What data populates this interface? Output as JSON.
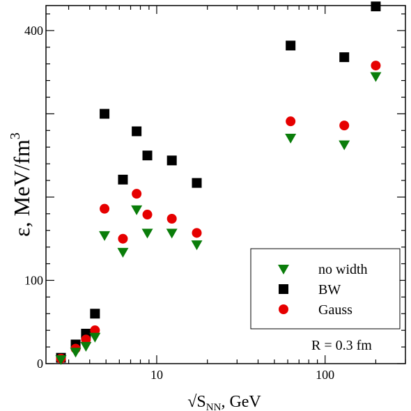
{
  "chart_data": {
    "type": "scatter",
    "title": "",
    "xlabel": {
      "prefix": "√S",
      "subscript": "NN",
      "suffix": ", GeV"
    },
    "ylabel": {
      "main": "ε, MeV/fm",
      "superscript": "3"
    },
    "x_scale": "log",
    "xlim": [
      2.2,
      300
    ],
    "ylim": [
      0,
      430
    ],
    "x_tick_labels": [
      "10",
      "100"
    ],
    "x_tick_values": [
      10,
      100
    ],
    "y_tick_labels": [
      "0",
      "100",
      "400"
    ],
    "y_tick_values": [
      0,
      100,
      400
    ],
    "legend_position": "lower-right",
    "annotation": "R = 0.3 fm",
    "series": [
      {
        "name": "no width",
        "marker": "triangle-down",
        "color": "#0a7d0a",
        "x": [
          2.7,
          3.3,
          3.8,
          4.3,
          4.9,
          6.3,
          7.6,
          8.8,
          12.3,
          17.3,
          62.4,
          130,
          200
        ],
        "y": [
          5,
          14,
          21,
          32,
          154,
          134,
          185,
          157,
          157,
          143,
          271,
          263,
          345
        ]
      },
      {
        "name": "BW",
        "marker": "square",
        "color": "#000000",
        "x": [
          2.7,
          3.3,
          3.8,
          4.3,
          4.9,
          6.3,
          7.6,
          8.8,
          12.3,
          17.3,
          62.4,
          130,
          200
        ],
        "y": [
          7,
          23,
          36,
          60,
          300,
          221,
          279,
          250,
          244,
          217,
          382,
          368,
          429
        ]
      },
      {
        "name": "Gauss",
        "marker": "circle",
        "color": "#e60000",
        "x": [
          2.7,
          3.3,
          3.8,
          4.3,
          4.9,
          6.3,
          7.6,
          8.8,
          12.3,
          17.3,
          62.4,
          130,
          200
        ],
        "y": [
          6,
          18,
          29,
          40,
          186,
          150,
          204,
          179,
          174,
          157,
          291,
          286,
          358
        ]
      }
    ]
  }
}
